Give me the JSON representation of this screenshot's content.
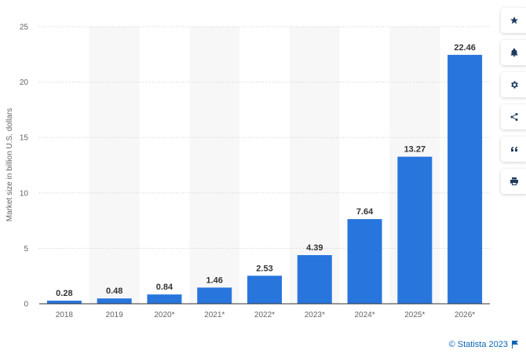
{
  "chart_data": {
    "type": "bar",
    "categories": [
      "2018",
      "2019",
      "2020*",
      "2021*",
      "2022*",
      "2023*",
      "2024*",
      "2025*",
      "2026*"
    ],
    "values": [
      0.28,
      0.48,
      0.84,
      1.46,
      2.53,
      4.39,
      7.64,
      13.27,
      22.46
    ],
    "value_labels": [
      "0.28",
      "0.48",
      "0.84",
      "1.46",
      "2.53",
      "4.39",
      "7.64",
      "13.27",
      "22.46"
    ],
    "ylabel": "Market size in billion U.S. dollars",
    "ylim": [
      0,
      25
    ],
    "yticks": [
      0,
      5,
      10,
      15,
      20,
      25
    ],
    "grid": true,
    "bar_color": "#2876dd",
    "alt_column_shading": "#f7f7f7"
  },
  "toolbar": {
    "buttons": [
      "star-icon",
      "bell-icon",
      "gear-icon",
      "share-icon",
      "quote-icon",
      "print-icon"
    ]
  },
  "footer": {
    "copyright": "© Statista 2023"
  }
}
